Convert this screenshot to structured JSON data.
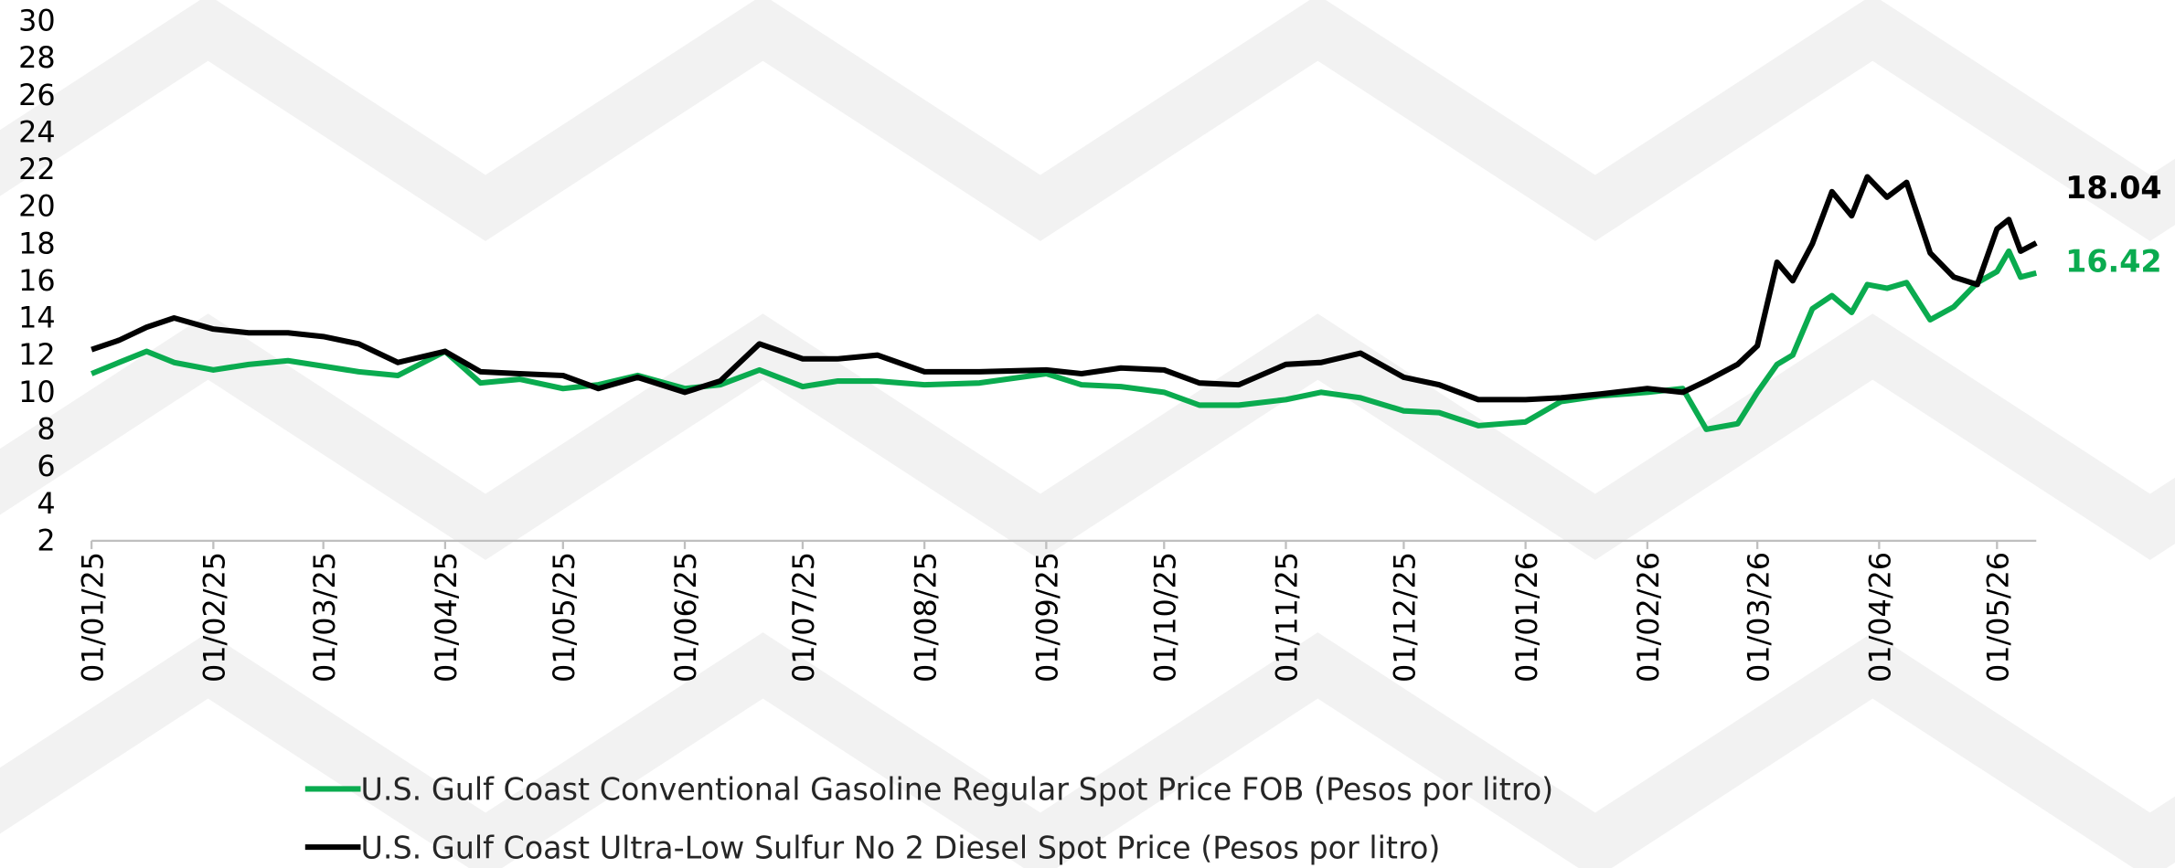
{
  "chart_data": {
    "type": "line",
    "x": [
      "01/01/25",
      "08/01/25",
      "15/01/25",
      "22/01/25",
      "01/02/25",
      "10/02/25",
      "20/02/25",
      "01/03/25",
      "10/03/25",
      "20/03/25",
      "01/04/25",
      "10/04/25",
      "20/04/25",
      "01/05/25",
      "10/05/25",
      "20/05/25",
      "01/06/25",
      "10/06/25",
      "20/06/25",
      "01/07/25",
      "10/07/25",
      "20/07/25",
      "01/08/25",
      "15/08/25",
      "01/09/25",
      "10/09/25",
      "20/09/25",
      "01/10/25",
      "10/10/25",
      "20/10/25",
      "01/11/25",
      "10/11/25",
      "20/11/25",
      "01/12/25",
      "10/12/25",
      "20/12/25",
      "01/01/26",
      "10/01/26",
      "20/01/26",
      "01/02/26",
      "10/02/26",
      "16/02/26",
      "24/02/26",
      "01/03/26",
      "06/03/26",
      "10/03/26",
      "15/03/26",
      "20/03/26",
      "25/03/26",
      "29/03/26",
      "03/04/26",
      "08/04/26",
      "14/04/26",
      "20/04/26",
      "26/04/26",
      "01/05/26",
      "04/05/26",
      "07/05/26",
      "11/05/26"
    ],
    "series": [
      {
        "name": "U.S. Gulf Coast Conventional Gasoline Regular Spot Price FOB (Pesos por litro)",
        "color": "#0aab4f",
        "values": [
          11.0,
          11.6,
          12.2,
          11.6,
          11.2,
          11.5,
          11.7,
          11.4,
          11.1,
          10.9,
          12.2,
          10.5,
          10.7,
          10.2,
          10.4,
          10.9,
          10.2,
          10.4,
          11.2,
          10.3,
          10.6,
          10.6,
          10.4,
          10.5,
          11.0,
          10.4,
          10.3,
          10.0,
          9.3,
          9.3,
          9.6,
          10.0,
          9.7,
          9.0,
          8.9,
          8.2,
          8.4,
          9.5,
          9.8,
          10.0,
          10.2,
          8.0,
          8.3,
          10.0,
          11.5,
          12.0,
          14.5,
          15.2,
          14.3,
          15.8,
          15.6,
          15.9,
          13.9,
          14.6,
          15.9,
          16.5,
          17.6,
          16.2,
          16.42
        ]
      },
      {
        "name": "U.S. Gulf Coast Ultra-Low Sulfur No 2 Diesel Spot Price (Pesos por litro)",
        "color": "#000000",
        "values": [
          12.3,
          12.8,
          13.5,
          14.0,
          13.4,
          13.2,
          13.2,
          13.0,
          12.6,
          11.6,
          12.2,
          11.1,
          11.0,
          10.9,
          10.2,
          10.8,
          10.0,
          10.6,
          12.6,
          11.8,
          11.8,
          12.0,
          11.1,
          11.1,
          11.2,
          11.0,
          11.3,
          11.2,
          10.5,
          10.4,
          11.5,
          11.6,
          12.1,
          10.8,
          10.4,
          9.6,
          9.6,
          9.7,
          9.9,
          10.2,
          10.0,
          10.6,
          11.5,
          12.5,
          17.0,
          16.0,
          18.0,
          20.8,
          19.5,
          21.6,
          20.5,
          21.3,
          17.5,
          16.2,
          15.8,
          18.8,
          19.3,
          17.6,
          18.04
        ]
      }
    ],
    "xlim": [
      "01/01/25",
      "11/05/26"
    ],
    "xticks": [
      "01/01/25",
      "01/02/25",
      "01/03/25",
      "01/04/25",
      "01/05/25",
      "01/06/25",
      "01/07/25",
      "01/08/25",
      "01/09/25",
      "01/10/25",
      "01/11/25",
      "01/12/25",
      "01/01/26",
      "01/02/26",
      "01/03/26",
      "01/04/26",
      "01/05/26"
    ],
    "ylim": [
      2,
      30
    ],
    "yticks": [
      2,
      4,
      6,
      8,
      10,
      12,
      14,
      16,
      18,
      20,
      22,
      24,
      26,
      28,
      30
    ],
    "legend": "bottom"
  }
}
